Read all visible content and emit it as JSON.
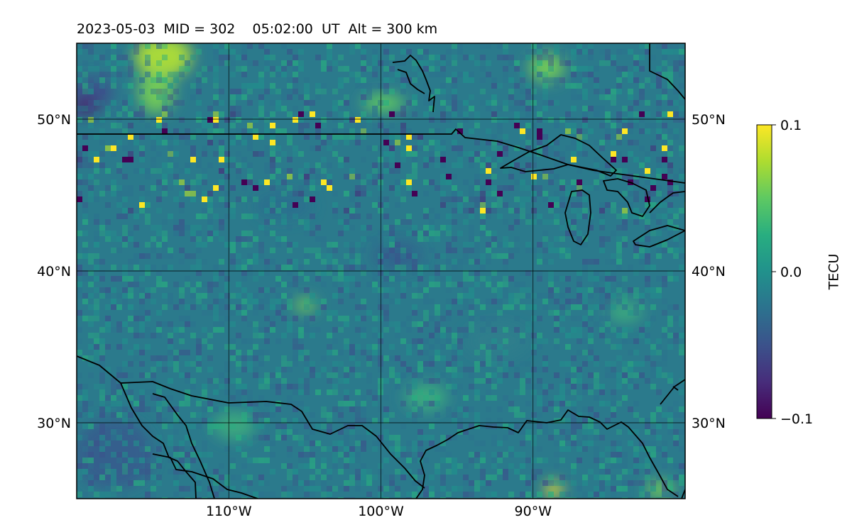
{
  "title": "2023-05-03  MID = 302    05:02:00  UT  Alt = 300 km",
  "map": {
    "lon_range": [
      -120,
      -80
    ],
    "lat_range": [
      25,
      55
    ],
    "lon_gridlines": [
      -110,
      -100,
      -90
    ],
    "lat_gridlines": [
      30,
      40,
      50
    ],
    "lon_tick_labels": [
      "110°W",
      "100°W",
      "90°W"
    ],
    "lat_tick_labels_left": [
      "30°N",
      "40°N",
      "50°N"
    ],
    "lat_tick_labels_right": [
      "30°N",
      "40°N",
      "50°N"
    ],
    "colormap": "viridis",
    "features": [
      "coastlines",
      "country-borders",
      "great-lakes"
    ]
  },
  "colorbar": {
    "label": "TECU",
    "min": -0.1,
    "max": 0.1,
    "ticks": [
      "0.1",
      "0.0",
      "−0.1"
    ]
  }
}
